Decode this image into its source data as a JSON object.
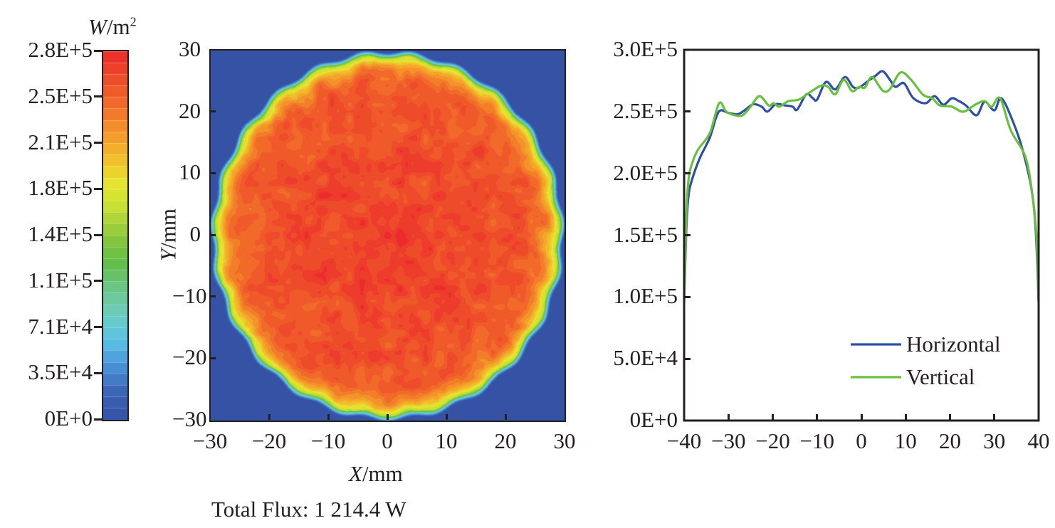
{
  "colorbar": {
    "unit_italic": "W",
    "unit_rest": "/m",
    "unit_sup": "2",
    "tick_labels": [
      "2.8E+5",
      "2.5E+5",
      "2.1E+5",
      "1.8E+5",
      "1.4E+5",
      "1.1E+5",
      "7.1E+4",
      "3.5E+4",
      "0E+0"
    ],
    "min": 0,
    "max": 280000,
    "colors": [
      "#3652a5",
      "#3a62b4",
      "#4a90d6",
      "#5bc3e5",
      "#6ccdc1",
      "#6cc685",
      "#63bf46",
      "#8dc83b",
      "#c5df34",
      "#e9e52f",
      "#f2bb2a",
      "#f4932a",
      "#f26a2a",
      "#ee4b2b",
      "#ec2b2c"
    ]
  },
  "chart_data": [
    {
      "type": "heatmap",
      "title": "",
      "xlabel_italic": "X",
      "xlabel_rest": "/mm",
      "ylabel_italic": "Y",
      "ylabel_rest": "/mm",
      "xlim": [
        -30,
        30
      ],
      "ylim": [
        -30,
        30
      ],
      "x_ticks": [
        "−30",
        "−20",
        "−10",
        "0",
        "10",
        "20",
        "30"
      ],
      "y_ticks": [
        "30",
        "20",
        "10",
        "0",
        "−10",
        "−20",
        "−30"
      ],
      "description": "Circular flux spot of radius ~29.5 mm centered at origin; interior 2.4E+5-2.8E+5 W/m2, edge falls off through yellow/green to ~0",
      "spot_radius_mm": 29.5,
      "center_value": 275000,
      "edge_value": 0,
      "radial_profile": [
        [
          0,
          272000
        ],
        [
          10,
          262000
        ],
        [
          20,
          255000
        ],
        [
          25,
          248000
        ],
        [
          27,
          225000
        ],
        [
          28,
          200000
        ],
        [
          29,
          150000
        ],
        [
          29.5,
          60000
        ],
        [
          30,
          0
        ]
      ],
      "annotation": "Total Flux: 1 214.4 W"
    },
    {
      "type": "line",
      "title": "",
      "xlabel": "",
      "ylabel": "",
      "xlim": [
        -40,
        40
      ],
      "ylim": [
        0,
        300000
      ],
      "x_ticks": [
        "−40",
        "−30",
        "−20",
        "−10",
        "0",
        "10",
        "20",
        "30",
        "40"
      ],
      "y_ticks": [
        "3.0E+5",
        "2.5E+5",
        "2.0E+5",
        "1.5E+5",
        "1.0E+5",
        "5.0E+4",
        "0E+0"
      ],
      "grid": false,
      "legend_position": "bottom-right",
      "series": [
        {
          "name": "Horizontal",
          "color": "#2e4fa2",
          "points": [
            [
              -40,
              96000
            ],
            [
              -39.5,
              155000
            ],
            [
              -39,
              182000
            ],
            [
              -38.2,
              195000
            ],
            [
              -36.5,
              212000
            ],
            [
              -34.2,
              229000
            ],
            [
              -32.8,
              245000
            ],
            [
              -31.8,
              251000
            ],
            [
              -30,
              249000
            ],
            [
              -27.8,
              248000
            ],
            [
              -26,
              252000
            ],
            [
              -24.4,
              256000
            ],
            [
              -22.5,
              254000
            ],
            [
              -21.2,
              250000
            ],
            [
              -19.3,
              256000
            ],
            [
              -17.2,
              255000
            ],
            [
              -15.5,
              254000
            ],
            [
              -14.5,
              251600
            ],
            [
              -12.4,
              264000
            ],
            [
              -11,
              261000
            ],
            [
              -10,
              259700
            ],
            [
              -8,
              274000
            ],
            [
              -5.9,
              268000
            ],
            [
              -3.7,
              278000
            ],
            [
              -1.9,
              270000
            ],
            [
              -0.5,
              269500
            ],
            [
              1.6,
              275000
            ],
            [
              3.2,
              279000
            ],
            [
              4.8,
              282700
            ],
            [
              6.4,
              276000
            ],
            [
              7.7,
              270000
            ],
            [
              9.6,
              273000
            ],
            [
              11.7,
              261000
            ],
            [
              14.5,
              256800
            ],
            [
              16.5,
              262500
            ],
            [
              18.5,
              255600
            ],
            [
              20.4,
              260800
            ],
            [
              22,
              258500
            ],
            [
              23.6,
              255000
            ],
            [
              26,
              247000
            ],
            [
              27.8,
              258000
            ],
            [
              30,
              251000
            ],
            [
              31.6,
              260800
            ],
            [
              34.2,
              242000
            ],
            [
              36.5,
              217600
            ],
            [
              38.5,
              184800
            ],
            [
              39.4,
              150000
            ],
            [
              40,
              96000
            ]
          ]
        },
        {
          "name": "Vertical",
          "color": "#6abf3f",
          "points": [
            [
              -40,
              96000
            ],
            [
              -39.5,
              165000
            ],
            [
              -39,
              195000
            ],
            [
              -38.2,
              208000
            ],
            [
              -36.9,
              219000
            ],
            [
              -34.2,
              232600
            ],
            [
              -32.1,
              256800
            ],
            [
              -30.5,
              250000
            ],
            [
              -28.5,
              247000
            ],
            [
              -26.8,
              247000
            ],
            [
              -25,
              254000
            ],
            [
              -23,
              262500
            ],
            [
              -20.9,
              255000
            ],
            [
              -19.8,
              256800
            ],
            [
              -18.5,
              254000
            ],
            [
              -16.5,
              258500
            ],
            [
              -14.1,
              259700
            ],
            [
              -11.7,
              265400
            ],
            [
              -9.1,
              271000
            ],
            [
              -7.5,
              270000
            ],
            [
              -5.9,
              264000
            ],
            [
              -4,
              275800
            ],
            [
              -2.1,
              266600
            ],
            [
              -0.5,
              270000
            ],
            [
              0.8,
              269500
            ],
            [
              2.4,
              278000
            ],
            [
              4.8,
              267000
            ],
            [
              6.4,
              268000
            ],
            [
              8.8,
              281600
            ],
            [
              11.2,
              275800
            ],
            [
              13.9,
              263700
            ],
            [
              16,
              260800
            ],
            [
              17.7,
              255000
            ],
            [
              20.4,
              254000
            ],
            [
              23,
              249900
            ],
            [
              25.7,
              255600
            ],
            [
              27.8,
              258500
            ],
            [
              29.4,
              254000
            ],
            [
              31.3,
              260800
            ],
            [
              33.7,
              235000
            ],
            [
              37,
              213600
            ],
            [
              38.5,
              184800
            ],
            [
              39.5,
              150000
            ],
            [
              40,
              96000
            ]
          ]
        }
      ]
    }
  ]
}
